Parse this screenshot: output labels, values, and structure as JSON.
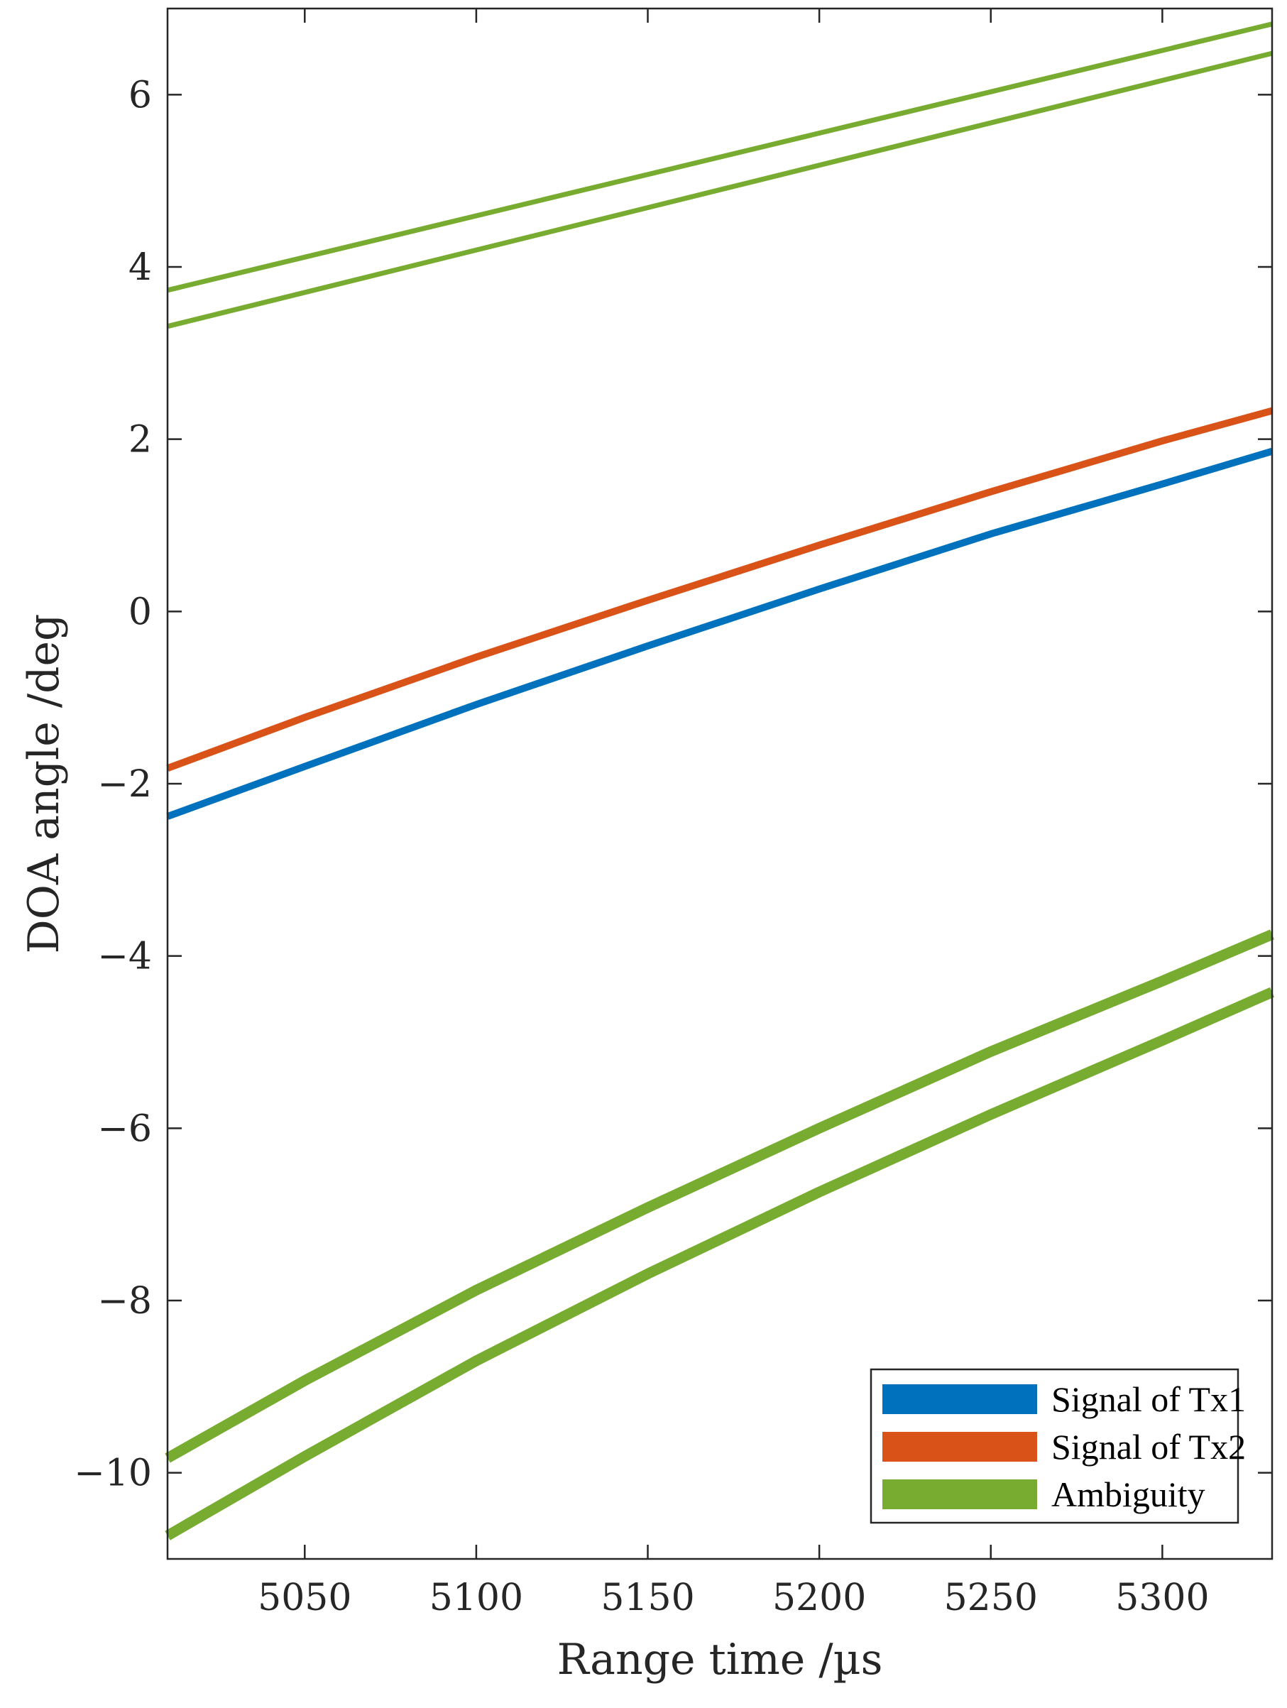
{
  "chart_data": {
    "type": "line",
    "title": "",
    "xlabel": "Range time /µs",
    "ylabel": "DOA angle /deg",
    "xlim": [
      5010,
      5332
    ],
    "ylim": [
      -11,
      7
    ],
    "xticks": [
      5050,
      5100,
      5150,
      5200,
      5250,
      5300
    ],
    "yticks": [
      -10,
      -8,
      -6,
      -4,
      -2,
      0,
      2,
      4,
      6
    ],
    "ytick_labels": [
      "−10",
      "−8",
      "−6",
      "−4",
      "−2",
      "0",
      "2",
      "4",
      "6"
    ],
    "xtick_labels": [
      "5050",
      "5100",
      "5150",
      "5200",
      "5250",
      "5300"
    ],
    "grid": false,
    "legend_position": "bottom-right",
    "legend": [
      {
        "name": "Signal of Tx1",
        "color": "#0072BD"
      },
      {
        "name": "Signal of Tx2",
        "color": "#D95319"
      },
      {
        "name": "Ambiguity",
        "color": "#77AC30"
      }
    ],
    "series": [
      {
        "name": "Signal of Tx1",
        "legend_name": "Signal of Tx1",
        "color": "#0072BD",
        "weight": "thick",
        "x": [
          5010,
          5050,
          5100,
          5150,
          5200,
          5250,
          5300,
          5332
        ],
        "y": [
          -2.38,
          -1.8,
          -1.08,
          -0.4,
          0.26,
          0.9,
          1.48,
          1.86
        ]
      },
      {
        "name": "Signal of Tx2",
        "legend_name": "Signal of Tx2",
        "color": "#D95319",
        "weight": "thick",
        "x": [
          5010,
          5050,
          5100,
          5150,
          5200,
          5250,
          5300,
          5332
        ],
        "y": [
          -1.82,
          -1.23,
          -0.53,
          0.13,
          0.77,
          1.39,
          1.98,
          2.33
        ]
      },
      {
        "name": "Ambiguity (upper)",
        "legend_name": "Ambiguity",
        "color": "#77AC30",
        "weight": "thin",
        "x": [
          5010,
          5332
        ],
        "y": [
          3.73,
          6.82
        ]
      },
      {
        "name": "Ambiguity (upper-lower)",
        "legend_name": "Ambiguity",
        "color": "#77AC30",
        "weight": "thin",
        "x": [
          5010,
          5332
        ],
        "y": [
          3.31,
          6.48
        ]
      },
      {
        "name": "Ambiguity (lower-upper)",
        "legend_name": "Ambiguity",
        "color": "#77AC30",
        "weight": "bold",
        "x": [
          5010,
          5050,
          5100,
          5150,
          5200,
          5250,
          5300,
          5332
        ],
        "y": [
          -9.83,
          -8.93,
          -7.88,
          -6.92,
          -6.0,
          -5.11,
          -4.29,
          -3.75
        ]
      },
      {
        "name": "Ambiguity (lowest)",
        "legend_name": "Ambiguity",
        "color": "#77AC30",
        "weight": "bold",
        "x": [
          5010,
          5050,
          5100,
          5150,
          5200,
          5250,
          5300,
          5332
        ],
        "y": [
          -10.73,
          -9.81,
          -8.7,
          -7.69,
          -6.74,
          -5.84,
          -4.98,
          -4.42
        ]
      }
    ]
  }
}
